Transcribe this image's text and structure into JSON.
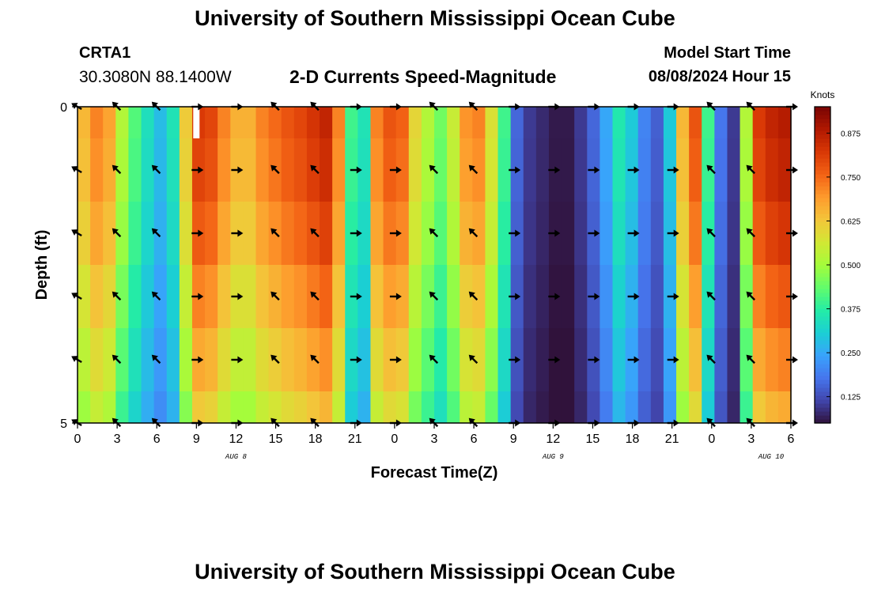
{
  "header": {
    "title": "University of Southern Mississippi Ocean Cube",
    "station_id": "CRTA1",
    "station_coords": "30.3080N  88.1400W",
    "chart_title": "2-D Currents Speed-Magnitude",
    "model_start_label": "Model Start Time",
    "model_start_value": "08/08/2024 Hour 15"
  },
  "footer": {
    "title": "University of Southern Mississippi Ocean Cube"
  },
  "chart_data": {
    "type": "heatmap",
    "title": "2-D Currents Speed-Magnitude",
    "xlabel": "Forecast Time(Z)",
    "ylabel": "Depth (ft)",
    "x_range_hours": [
      0,
      54
    ],
    "y_range_ft": [
      0,
      5
    ],
    "x_ticks": [
      {
        "h": 0,
        "label": "0"
      },
      {
        "h": 3,
        "label": "3"
      },
      {
        "h": 6,
        "label": "6"
      },
      {
        "h": 9,
        "label": "9"
      },
      {
        "h": 12,
        "label": "12"
      },
      {
        "h": 15,
        "label": "15"
      },
      {
        "h": 18,
        "label": "18"
      },
      {
        "h": 21,
        "label": "21"
      },
      {
        "h": 24,
        "label": "0"
      },
      {
        "h": 27,
        "label": "3"
      },
      {
        "h": 30,
        "label": "6"
      },
      {
        "h": 33,
        "label": "9"
      },
      {
        "h": 36,
        "label": "12"
      },
      {
        "h": 39,
        "label": "15"
      },
      {
        "h": 42,
        "label": "18"
      },
      {
        "h": 45,
        "label": "21"
      },
      {
        "h": 48,
        "label": "0"
      },
      {
        "h": 51,
        "label": "3"
      },
      {
        "h": 54,
        "label": "6"
      }
    ],
    "date_labels": [
      {
        "h": 12,
        "label": "AUG 8"
      },
      {
        "h": 36,
        "label": "AUG 9"
      },
      {
        "h": 52.5,
        "label": "AUG 10"
      }
    ],
    "y_ticks": [
      {
        "value": 0,
        "label": "0"
      },
      {
        "value": 5,
        "label": "5"
      }
    ],
    "depth_bins_ft": [
      0,
      1,
      2,
      3,
      4,
      5
    ],
    "speed_profile_knots": [
      0.65,
      0.72,
      0.68,
      0.52,
      0.42,
      0.34,
      0.28,
      0.35,
      0.62,
      0.82,
      0.8,
      0.72,
      0.66,
      0.66,
      0.72,
      0.75,
      0.78,
      0.8,
      0.83,
      0.86,
      0.72,
      0.4,
      0.35,
      0.72,
      0.78,
      0.76,
      0.6,
      0.52,
      0.45,
      0.55,
      0.7,
      0.72,
      0.58,
      0.4,
      0.16,
      0.1,
      0.08,
      0.06,
      0.06,
      0.1,
      0.16,
      0.25,
      0.36,
      0.3,
      0.2,
      0.15,
      0.3,
      0.65,
      0.78,
      0.4,
      0.18,
      0.1,
      0.52,
      0.82,
      0.86,
      0.88
    ],
    "depth_factor": [
      1.0,
      0.98,
      0.94,
      0.88,
      0.82,
      0.76
    ],
    "arrow_hours": [
      0,
      3,
      6,
      9,
      12,
      15,
      18,
      21,
      24,
      27,
      30,
      33,
      36,
      39,
      42,
      45,
      48,
      51,
      54
    ],
    "arrow_depths_ft": [
      0,
      1,
      2,
      3,
      4,
      5
    ],
    "arrow_directions_deg": [
      210,
      225,
      225,
      0,
      0,
      225,
      225,
      0,
      0,
      225,
      225,
      0,
      0,
      0,
      0,
      0,
      225,
      225,
      0
    ],
    "missing_cells": [
      {
        "h": 9,
        "depth_bin": 0
      }
    ],
    "colorbar": {
      "label": "Knots",
      "ticks": [
        {
          "value": 0.125,
          "label": "0.125"
        },
        {
          "value": 0.25,
          "label": "0.250"
        },
        {
          "value": 0.375,
          "label": "0.375"
        },
        {
          "value": 0.5,
          "label": "0.500"
        },
        {
          "value": 0.625,
          "label": "0.625"
        },
        {
          "value": 0.75,
          "label": "0.750"
        },
        {
          "value": 0.875,
          "label": "0.875"
        }
      ],
      "range": [
        0.05,
        0.95
      ]
    }
  },
  "colors": {
    "colormap": [
      "#30123b",
      "#4145ab",
      "#4675ed",
      "#39a2fc",
      "#1bcfd4",
      "#24eca6",
      "#61fc6c",
      "#a4fc3b",
      "#d1e834",
      "#f3c63a",
      "#fe9b2d",
      "#f36315",
      "#d93806",
      "#b11901",
      "#7a0403"
    ]
  }
}
